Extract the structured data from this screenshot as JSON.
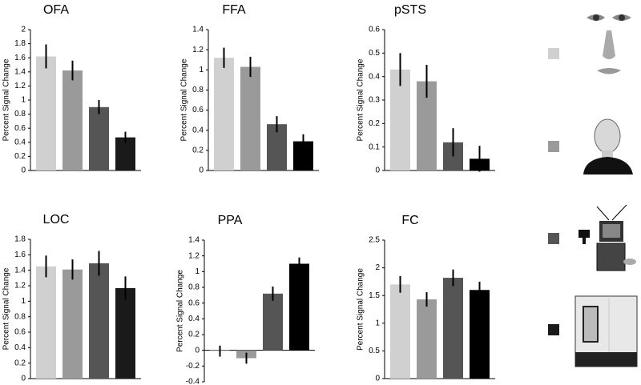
{
  "chart_data": [
    {
      "type": "bar",
      "title": "OFA",
      "ylabel": "Percent Signal Change",
      "categories": [
        null,
        null,
        null,
        null
      ],
      "values": [
        1.62,
        1.42,
        0.9,
        0.47
      ],
      "errors": [
        0.17,
        0.14,
        0.1,
        0.08
      ],
      "colors": [
        "#d0d0d0",
        "#9a9a9a",
        "#555555",
        "#1a1a1a"
      ],
      "ylim": [
        0,
        2
      ],
      "yticks": [
        0,
        0.2,
        0.4,
        0.6,
        0.8,
        1,
        1.2,
        1.4,
        1.6,
        1.8,
        2
      ]
    },
    {
      "type": "bar",
      "title": "FFA",
      "ylabel": "Percent Signal Change",
      "categories": [
        null,
        null,
        null,
        null
      ],
      "values": [
        1.12,
        1.03,
        0.46,
        0.29
      ],
      "errors": [
        0.1,
        0.1,
        0.08,
        0.07
      ],
      "colors": [
        "#d0d0d0",
        "#9a9a9a",
        "#555555",
        "#000000"
      ],
      "ylim": [
        0,
        1.4
      ],
      "yticks": [
        0,
        0.2,
        0.4,
        0.6,
        0.8,
        1,
        1.2,
        1.4
      ]
    },
    {
      "type": "bar",
      "title": "pSTS",
      "ylabel": "Percent Signal Change",
      "categories": [
        null,
        null,
        null,
        null
      ],
      "values": [
        0.43,
        0.38,
        0.12,
        0.05
      ],
      "errors": [
        0.07,
        0.07,
        0.06,
        0.055
      ],
      "colors": [
        "#d0d0d0",
        "#9a9a9a",
        "#555555",
        "#000000"
      ],
      "ylim": [
        0,
        0.6
      ],
      "yticks": [
        0,
        0.1,
        0.2,
        0.3,
        0.4,
        0.5,
        0.6
      ]
    },
    {
      "type": "bar",
      "title": "LOC",
      "ylabel": "Percent Signal Change",
      "categories": [
        null,
        null,
        null,
        null
      ],
      "values": [
        1.45,
        1.41,
        1.49,
        1.17
      ],
      "errors": [
        0.14,
        0.13,
        0.16,
        0.15
      ],
      "colors": [
        "#d0d0d0",
        "#9a9a9a",
        "#555555",
        "#1a1a1a"
      ],
      "ylim": [
        0,
        1.8
      ],
      "yticks": [
        0,
        0.2,
        0.4,
        0.6,
        0.8,
        1,
        1.2,
        1.4,
        1.6,
        1.8
      ]
    },
    {
      "type": "bar",
      "title": "PPA",
      "ylabel": "Percent Signal Change",
      "categories": [
        null,
        null,
        null,
        null
      ],
      "values": [
        -0.01,
        -0.1,
        0.72,
        1.1
      ],
      "errors": [
        0.07,
        0.07,
        0.09,
        0.08
      ],
      "colors": [
        "#d0d0d0",
        "#9a9a9a",
        "#555555",
        "#000000"
      ],
      "ylim": [
        -0.4,
        1.4
      ],
      "yticks": [
        -0.4,
        -0.2,
        0,
        0.2,
        0.4,
        0.6,
        0.8,
        1,
        1.2,
        1.4
      ]
    },
    {
      "type": "bar",
      "title": "FC",
      "ylabel": "Percent Signal Change",
      "categories": [
        null,
        null,
        null,
        null
      ],
      "values": [
        1.7,
        1.43,
        1.82,
        1.6
      ],
      "errors": [
        0.15,
        0.13,
        0.15,
        0.15
      ],
      "colors": [
        "#d0d0d0",
        "#9a9a9a",
        "#555555",
        "#000000"
      ],
      "ylim": [
        0,
        2.5
      ],
      "yticks": [
        0,
        0.5,
        1,
        1.5,
        2,
        2.5
      ]
    }
  ]
}
